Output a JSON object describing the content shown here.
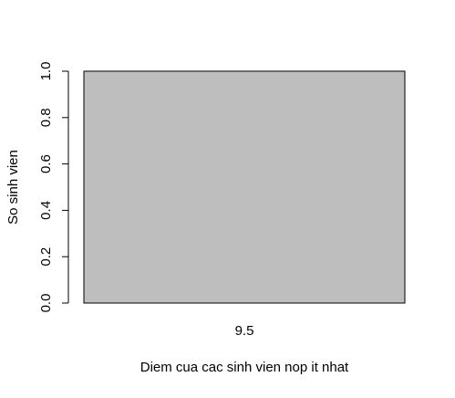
{
  "chart_data": {
    "type": "bar",
    "categories": [
      "9.5"
    ],
    "values": [
      1
    ],
    "title": "",
    "xlabel": "Diem cua cac sinh vien nop it nhat",
    "ylabel": "So sinh vien",
    "ylim": [
      0,
      1
    ],
    "yticks": [
      0.0,
      0.2,
      0.4,
      0.6,
      0.8,
      1.0
    ],
    "ytick_labels": [
      "0.0",
      "0.2",
      "0.4",
      "0.6",
      "0.8",
      "1.0"
    ],
    "grid": false,
    "legend": "none",
    "colors": {
      "bar_fill": "#bebebe",
      "bar_stroke": "#000000",
      "axis": "#000000",
      "background": "#ffffff"
    }
  }
}
